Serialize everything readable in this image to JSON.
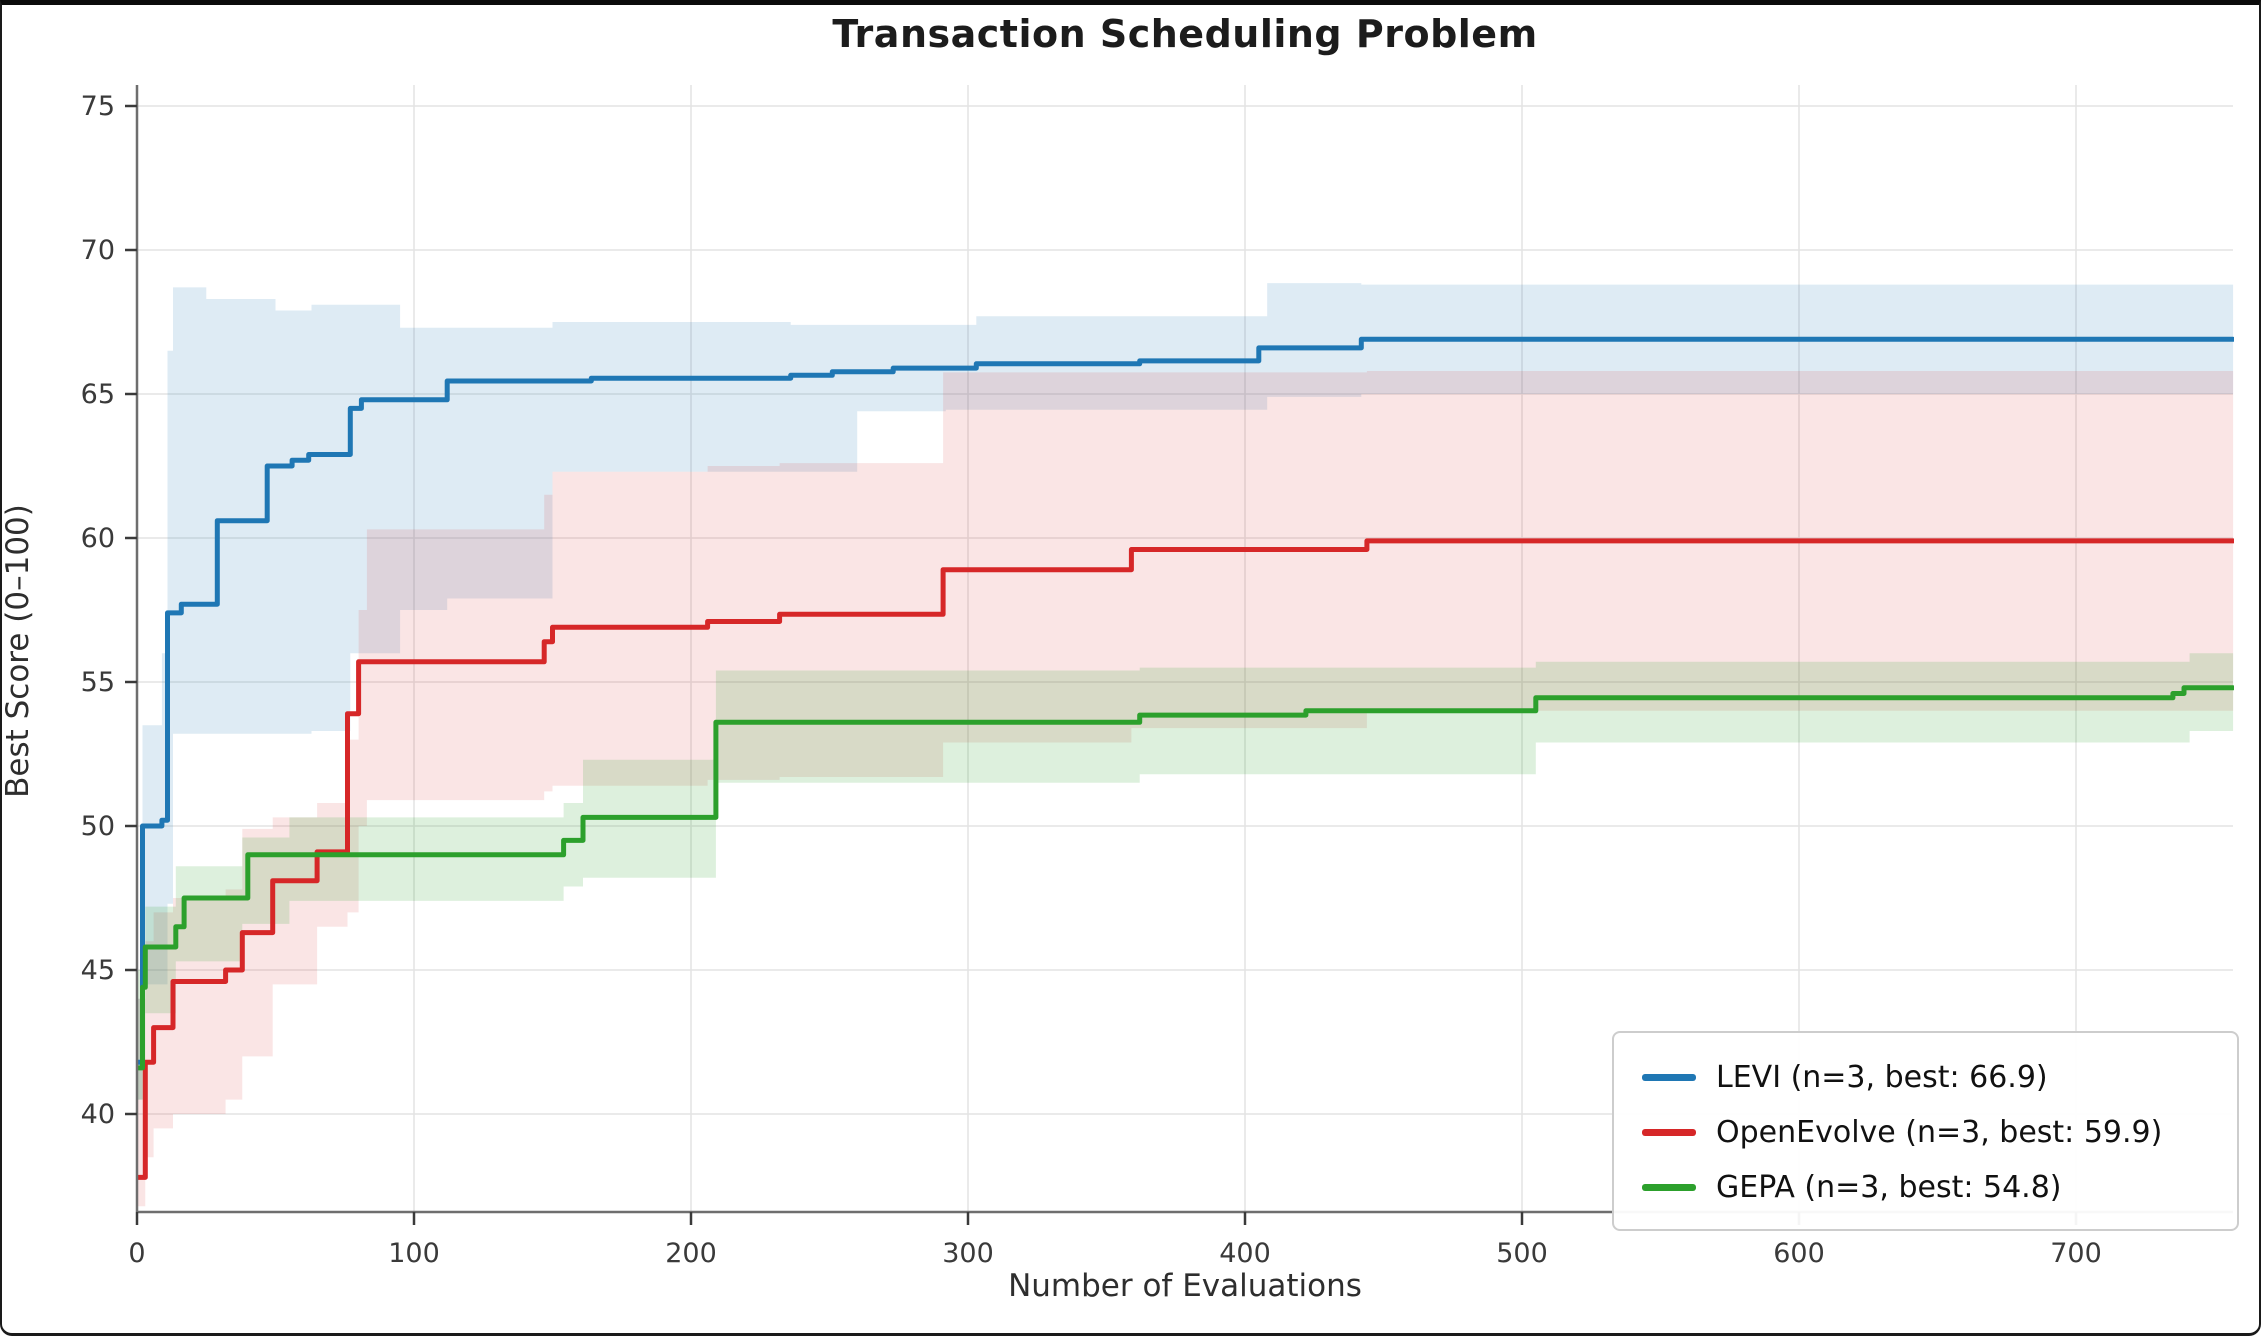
{
  "chart_data": {
    "type": "line",
    "title": "Transaction Scheduling Problem",
    "xlabel": "Number of Evaluations",
    "ylabel": "Best Score (0–100)",
    "xlim": [
      0,
      756.7
    ],
    "ylim": [
      36.6,
      75.7
    ],
    "xticks": [
      0,
      100,
      200,
      300,
      400,
      500,
      600,
      700
    ],
    "yticks": [
      40,
      45,
      50,
      55,
      60,
      65,
      70,
      75
    ],
    "grid": true,
    "legend_position": "lower right",
    "x_end": 756.7,
    "style": {
      "grid_color": "#e4e4e4",
      "spine_color": "#6e6e6e",
      "tick_color": "#3a3a3a",
      "line_width": 5
    },
    "series": [
      {
        "name": "LEVI (n=3, best: 66.9)",
        "short_name": "LEVI",
        "n": 3,
        "best": 66.9,
        "color": "#1f77b4",
        "band_color": "rgba(31,119,180,0.15)",
        "steps": [
          [
            0,
            41.8
          ],
          [
            2,
            50.0
          ],
          [
            9,
            50.2
          ],
          [
            11,
            57.4
          ],
          [
            16,
            57.7
          ],
          [
            29,
            60.6
          ],
          [
            47,
            62.5
          ],
          [
            56,
            62.7
          ],
          [
            62,
            62.9
          ],
          [
            77,
            64.5
          ],
          [
            81,
            64.8
          ],
          [
            112,
            65.45
          ],
          [
            164,
            65.55
          ],
          [
            236,
            65.65
          ],
          [
            251,
            65.77
          ],
          [
            273,
            65.9
          ],
          [
            303,
            66.05
          ],
          [
            362,
            66.15
          ],
          [
            405,
            66.6
          ],
          [
            442,
            66.9
          ]
        ],
        "band_upper": [
          [
            0,
            44.0
          ],
          [
            2,
            53.5
          ],
          [
            9,
            56.0
          ],
          [
            11,
            66.5
          ],
          [
            13,
            68.7
          ],
          [
            25,
            68.3
          ],
          [
            50,
            67.9
          ],
          [
            63,
            68.1
          ],
          [
            95,
            67.3
          ],
          [
            150,
            67.5
          ],
          [
            236,
            67.4
          ],
          [
            303,
            67.7
          ],
          [
            408,
            68.85
          ],
          [
            442,
            68.8
          ]
        ],
        "band_lower": [
          [
            0,
            40.5
          ],
          [
            2,
            44.5
          ],
          [
            11,
            47.3
          ],
          [
            13,
            53.2
          ],
          [
            63,
            53.3
          ],
          [
            77,
            56.0
          ],
          [
            95,
            57.5
          ],
          [
            112,
            57.9
          ],
          [
            150,
            62.3
          ],
          [
            260,
            64.4
          ],
          [
            292,
            64.45
          ],
          [
            408,
            64.9
          ],
          [
            442,
            65.0
          ]
        ]
      },
      {
        "name": "OpenEvolve (n=3, best: 59.9)",
        "short_name": "OpenEvolve",
        "n": 3,
        "best": 59.9,
        "color": "#d62728",
        "band_color": "rgba(214,39,40,0.12)",
        "steps": [
          [
            0,
            37.8
          ],
          [
            3,
            41.8
          ],
          [
            6,
            43.0
          ],
          [
            13,
            44.6
          ],
          [
            32,
            45.0
          ],
          [
            38,
            46.3
          ],
          [
            49,
            48.1
          ],
          [
            65,
            49.1
          ],
          [
            76,
            53.9
          ],
          [
            80,
            55.7
          ],
          [
            147,
            56.4
          ],
          [
            150,
            56.9
          ],
          [
            206,
            57.1
          ],
          [
            232,
            57.35
          ],
          [
            291,
            58.9
          ],
          [
            359,
            59.6
          ],
          [
            444,
            59.9
          ]
        ],
        "band_upper": [
          [
            0,
            44.0
          ],
          [
            3,
            46.0
          ],
          [
            6,
            47.0
          ],
          [
            13,
            47.5
          ],
          [
            32,
            47.8
          ],
          [
            38,
            49.9
          ],
          [
            49,
            50.3
          ],
          [
            65,
            50.8
          ],
          [
            76,
            53.0
          ],
          [
            80,
            57.5
          ],
          [
            83,
            60.3
          ],
          [
            147,
            61.5
          ],
          [
            150,
            62.3
          ],
          [
            206,
            62.5
          ],
          [
            232,
            62.6
          ],
          [
            291,
            65.75
          ],
          [
            444,
            65.8
          ]
        ],
        "band_lower": [
          [
            0,
            36.8
          ],
          [
            3,
            38.5
          ],
          [
            6,
            39.5
          ],
          [
            13,
            40.0
          ],
          [
            32,
            40.5
          ],
          [
            38,
            42.0
          ],
          [
            49,
            44.5
          ],
          [
            65,
            46.5
          ],
          [
            76,
            47.0
          ],
          [
            80,
            50.0
          ],
          [
            83,
            50.9
          ],
          [
            147,
            51.2
          ],
          [
            150,
            51.4
          ],
          [
            206,
            51.6
          ],
          [
            232,
            51.7
          ],
          [
            291,
            52.9
          ],
          [
            359,
            53.4
          ],
          [
            444,
            54.0
          ]
        ]
      },
      {
        "name": "GEPA (n=3, best: 54.8)",
        "short_name": "GEPA",
        "n": 3,
        "best": 54.8,
        "color": "#2ca02c",
        "band_color": "rgba(44,160,44,0.16)",
        "steps": [
          [
            0,
            41.6
          ],
          [
            2,
            44.4
          ],
          [
            3,
            45.8
          ],
          [
            14,
            46.5
          ],
          [
            17,
            47.5
          ],
          [
            40,
            49.0
          ],
          [
            154,
            49.5
          ],
          [
            161,
            50.3
          ],
          [
            209,
            53.6
          ],
          [
            362,
            53.85
          ],
          [
            422,
            54.0
          ],
          [
            505,
            54.45
          ],
          [
            735,
            54.6
          ],
          [
            739,
            54.8
          ]
        ],
        "band_upper": [
          [
            0,
            45.0
          ],
          [
            3,
            47.2
          ],
          [
            14,
            48.6
          ],
          [
            38,
            49.6
          ],
          [
            55,
            50.3
          ],
          [
            154,
            50.8
          ],
          [
            161,
            52.3
          ],
          [
            209,
            55.4
          ],
          [
            362,
            55.5
          ],
          [
            505,
            55.7
          ],
          [
            741,
            56.0
          ]
        ],
        "band_lower": [
          [
            0,
            40.5
          ],
          [
            3,
            43.5
          ],
          [
            14,
            45.3
          ],
          [
            38,
            46.6
          ],
          [
            55,
            47.4
          ],
          [
            154,
            47.9
          ],
          [
            161,
            48.2
          ],
          [
            209,
            51.5
          ],
          [
            362,
            51.8
          ],
          [
            505,
            52.9
          ],
          [
            741,
            53.3
          ]
        ]
      }
    ]
  },
  "legend": {
    "items": [
      {
        "label": "LEVI (n=3, best: 66.9)"
      },
      {
        "label": "OpenEvolve (n=3, best: 59.9)"
      },
      {
        "label": "GEPA (n=3, best: 54.8)"
      }
    ]
  }
}
